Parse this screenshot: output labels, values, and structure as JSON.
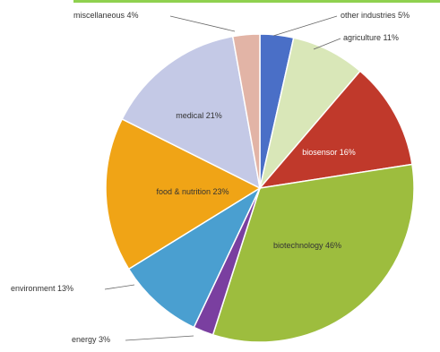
{
  "chart_data": {
    "type": "pie",
    "unit": "%",
    "slices": [
      {
        "label": "other industries 5%",
        "value": 5,
        "color": "#4a6fc7"
      },
      {
        "label": "agriculture 11%",
        "value": 11,
        "color": "#d9e7b8"
      },
      {
        "label": "biosensor 16%",
        "value": 16,
        "color": "#c0392b"
      },
      {
        "label": "biotechnology 46%",
        "value": 46,
        "color": "#9dbd3e"
      },
      {
        "label": "energy 3%",
        "value": 3,
        "color": "#7a3fa0"
      },
      {
        "label": "environment 13%",
        "value": 13,
        "color": "#4a9fd0"
      },
      {
        "label": "food & nutrition 23%",
        "value": 23,
        "color": "#f0a416"
      },
      {
        "label": "medical 21%",
        "value": 21,
        "color": "#c4c9e6"
      },
      {
        "label": "miscellaneous 4%",
        "value": 4,
        "color": "#e2b4a6"
      }
    ]
  }
}
